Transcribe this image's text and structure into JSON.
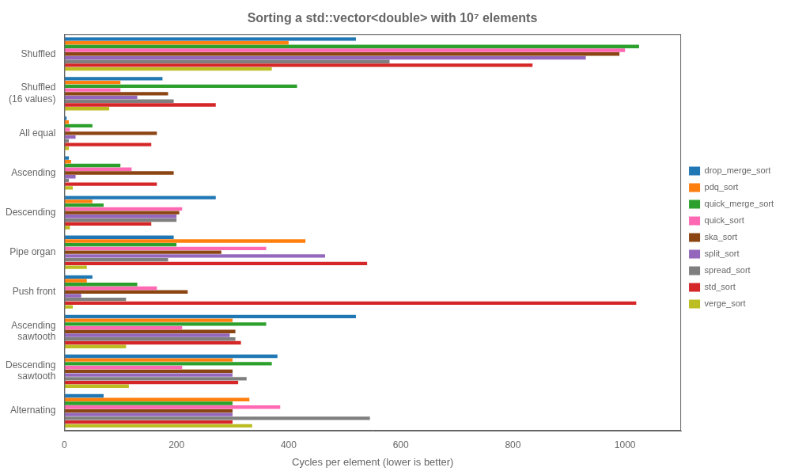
{
  "chart_data": {
    "type": "bar",
    "orientation": "horizontal",
    "title": "Sorting a std::vector<double> with 10⁷ elements",
    "xlabel": "Cycles per element (lower is better)",
    "categories": [
      "Shuffled",
      "Shuffled\n(16 values)",
      "All equal",
      "Ascending",
      "Descending",
      "Pipe organ",
      "Push front",
      "Ascending\nsawtooth",
      "Descending\nsawtooth",
      "Alternating"
    ],
    "series": [
      {
        "name": "drop_merge_sort",
        "color": "#1f77b4",
        "values": [
          520,
          175,
          4,
          8,
          270,
          195,
          50,
          520,
          380,
          70
        ]
      },
      {
        "name": "pdq_sort",
        "color": "#ff7f0e",
        "values": [
          400,
          100,
          8,
          12,
          50,
          430,
          40,
          300,
          300,
          330
        ]
      },
      {
        "name": "quick_merge_sort",
        "color": "#2ca02c",
        "values": [
          1025,
          415,
          50,
          100,
          70,
          200,
          130,
          360,
          370,
          300
        ]
      },
      {
        "name": "quick_sort",
        "color": "#ff69b4",
        "values": [
          1000,
          100,
          10,
          120,
          210,
          360,
          165,
          210,
          210,
          385
        ]
      },
      {
        "name": "ska_sort",
        "color": "#8b4513",
        "values": [
          990,
          185,
          165,
          195,
          205,
          280,
          220,
          305,
          300,
          300
        ]
      },
      {
        "name": "split_sort",
        "color": "#9467bd",
        "values": [
          930,
          130,
          20,
          20,
          200,
          465,
          30,
          295,
          300,
          300
        ]
      },
      {
        "name": "spread_sort",
        "color": "#7f7f7f",
        "values": [
          580,
          195,
          8,
          8,
          200,
          185,
          110,
          305,
          325,
          545
        ]
      },
      {
        "name": "std_sort",
        "color": "#d62728",
        "values": [
          835,
          270,
          155,
          165,
          155,
          540,
          1020,
          315,
          310,
          300
        ]
      },
      {
        "name": "verge_sort",
        "color": "#bcbd22",
        "values": [
          370,
          80,
          8,
          15,
          10,
          40,
          15,
          110,
          115,
          335
        ]
      }
    ],
    "xlim": [
      0,
      1100
    ],
    "xticks": [
      0,
      200,
      400,
      600,
      800,
      1000
    ],
    "grid": false,
    "legend": "right"
  }
}
